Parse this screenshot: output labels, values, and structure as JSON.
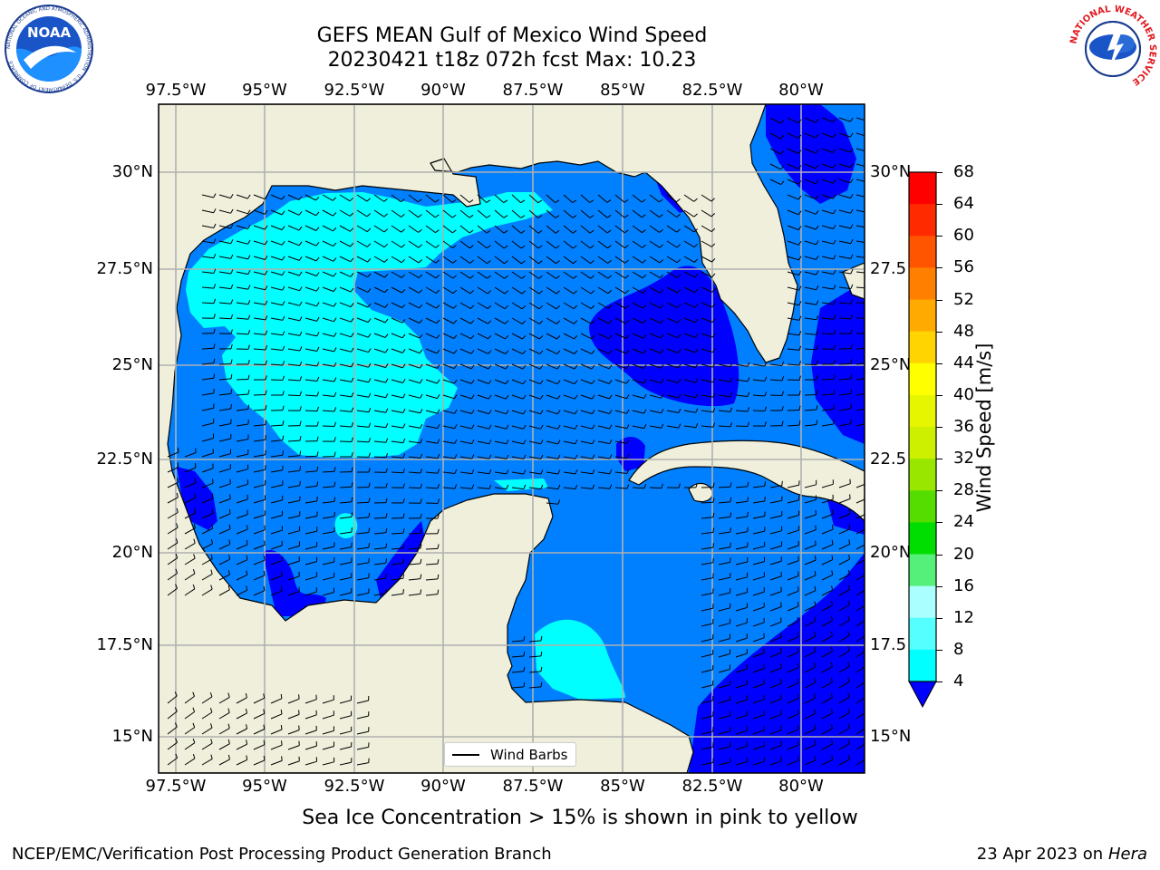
{
  "title": {
    "line1": "GEFS MEAN Gulf of Mexico Wind Speed",
    "line2": "20230421 t18z 072h fcst   Max: 10.23"
  },
  "axes": {
    "lon_labels": [
      "97.5°W",
      "95°W",
      "92.5°W",
      "90°W",
      "87.5°W",
      "85°W",
      "82.5°W",
      "80°W"
    ],
    "lat_labels_left": [
      "30°N",
      "27.5°N",
      "25°N",
      "22.5°N",
      "20°N",
      "17.5°N",
      "15°N"
    ],
    "lat_labels_right": [
      "30°N",
      "27.5",
      "25°N",
      "22.5",
      "20°N",
      "17.5",
      "15°N"
    ]
  },
  "legend": {
    "label": "Wind Barbs"
  },
  "colorbar": {
    "label": "Wind Speed [m/s]",
    "ticks": [
      "68",
      "64",
      "60",
      "56",
      "52",
      "48",
      "44",
      "40",
      "36",
      "32",
      "28",
      "24",
      "20",
      "16",
      "12",
      "8",
      "4"
    ],
    "colors": [
      "#ff0000",
      "#ff2a00",
      "#ff5500",
      "#ff8000",
      "#ffaa00",
      "#ffd400",
      "#ffff00",
      "#e6f500",
      "#ccf000",
      "#99e600",
      "#55dd00",
      "#00dd00",
      "#55f07a",
      "#aaffff",
      "#55ffff",
      "#00ffff",
      "#0080ff"
    ],
    "extend_color": "#0000ff"
  },
  "subtitle": "Sea Ice Concentration > 15% is shown in pink to yellow",
  "footer": {
    "left": "NCEP/EMC/Verification Post Processing Product Generation Branch",
    "date": "23 Apr 2023 on",
    "host": "Hera"
  },
  "logos": {
    "noaa_text": "NOAA",
    "noaa_ring": "NATIONAL OCEANIC AND ATMOSPHERIC ADMINISTRATION · U.S. DEPARTMENT OF COMMERCE",
    "nws_ring": "NATIONAL WEATHER SERVICE"
  },
  "map_colors": {
    "land": "#efefdc",
    "speed_4_8": "#0080ff",
    "speed_8_12": "#00ffff",
    "speed_below_4": "#0000ff",
    "grid": "#b0b0b0"
  }
}
